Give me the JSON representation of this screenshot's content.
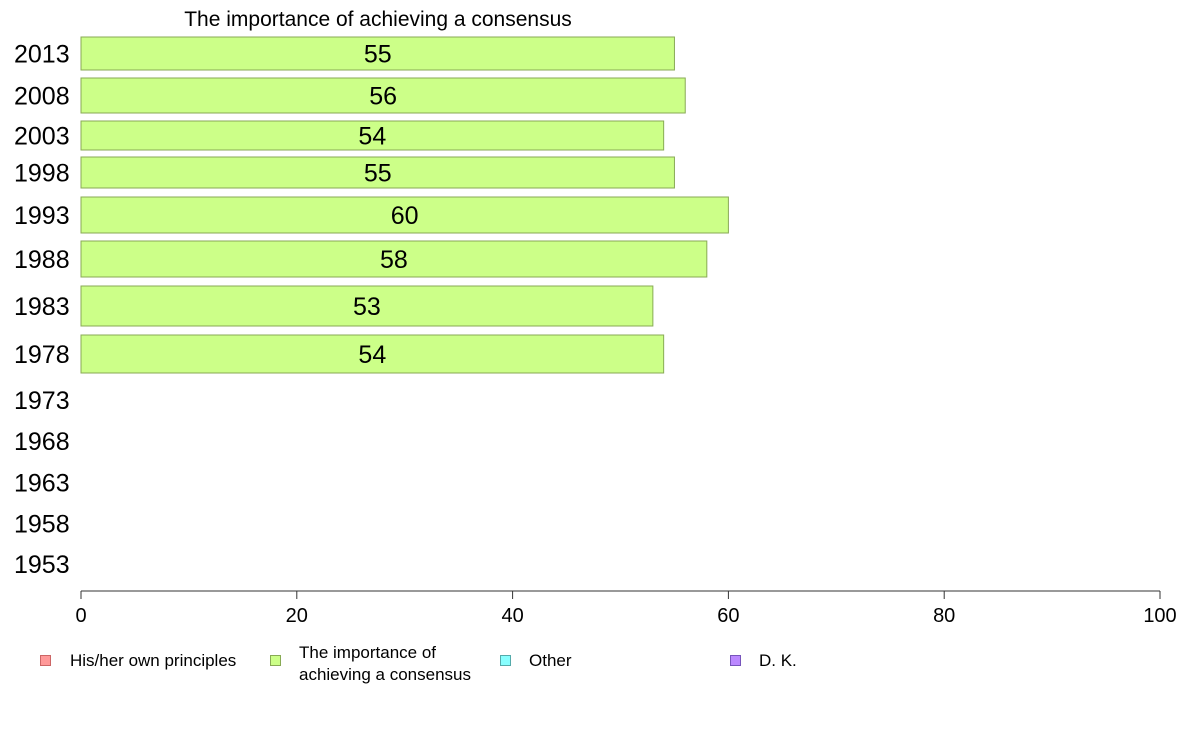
{
  "chart_data": {
    "type": "bar",
    "orientation": "horizontal",
    "title": "The importance of achieving a consensus",
    "categories": [
      "2013",
      "2008",
      "2003",
      "1998",
      "1993",
      "1988",
      "1983",
      "1978",
      "1973",
      "1968",
      "1963",
      "1958",
      "1953"
    ],
    "series": [
      {
        "name": "His/her own principles",
        "color": "#ff9999",
        "values": [
          null,
          null,
          null,
          null,
          null,
          null,
          null,
          null,
          null,
          null,
          null,
          null,
          null
        ]
      },
      {
        "name": "The importance of achieving a consensus",
        "color": "#ccff88",
        "values": [
          55,
          56,
          54,
          55,
          60,
          58,
          53,
          54,
          null,
          null,
          null,
          null,
          null
        ]
      },
      {
        "name": "Other",
        "color": "#88ffff",
        "values": [
          null,
          null,
          null,
          null,
          null,
          null,
          null,
          null,
          null,
          null,
          null,
          null,
          null
        ]
      },
      {
        "name": "D. K.",
        "color": "#bb88ff",
        "values": [
          null,
          null,
          null,
          null,
          null,
          null,
          null,
          null,
          null,
          null,
          null,
          null,
          null
        ]
      }
    ],
    "xlim": [
      0,
      100
    ],
    "xticks": [
      0,
      20,
      40,
      60,
      80,
      100
    ],
    "xlabel": "",
    "ylabel": "",
    "grid": false,
    "legend_position": "bottom"
  },
  "legend": [
    {
      "line1": "His/her own principles",
      "line2": "",
      "color": "#ff9999",
      "border": "#cc6666"
    },
    {
      "line1": "The importance of",
      "line2": "achieving a consensus",
      "color": "#ccff88",
      "border": "#88aa55"
    },
    {
      "line1": "Other",
      "line2": "",
      "color": "#88ffff",
      "border": "#55aaaa"
    },
    {
      "line1": "D. K.",
      "line2": "",
      "color": "#bb88ff",
      "border": "#7755bb"
    }
  ]
}
